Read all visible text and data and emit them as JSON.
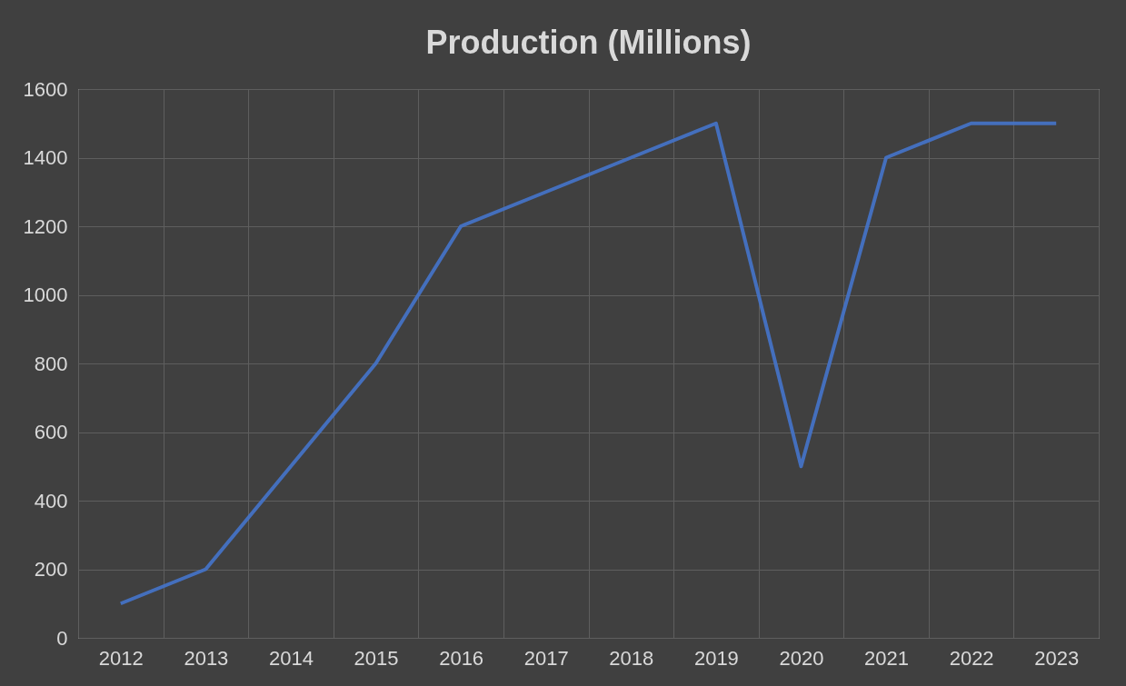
{
  "chart_data": {
    "type": "line",
    "title": "Production (Millions)",
    "categories": [
      "2012",
      "2013",
      "2014",
      "2015",
      "2016",
      "2017",
      "2018",
      "2019",
      "2020",
      "2021",
      "2022",
      "2023"
    ],
    "series": [
      {
        "color": "#4472c4",
        "values": [
          100,
          200,
          500,
          800,
          1200,
          1300,
          1400,
          1500,
          500,
          1400,
          1500,
          1500
        ]
      }
    ],
    "ylim": [
      0,
      1600
    ],
    "yticks": [
      0,
      200,
      400,
      600,
      800,
      1000,
      1200,
      1400,
      1600
    ],
    "grid": true,
    "marker": "none",
    "line_style": "solid"
  }
}
